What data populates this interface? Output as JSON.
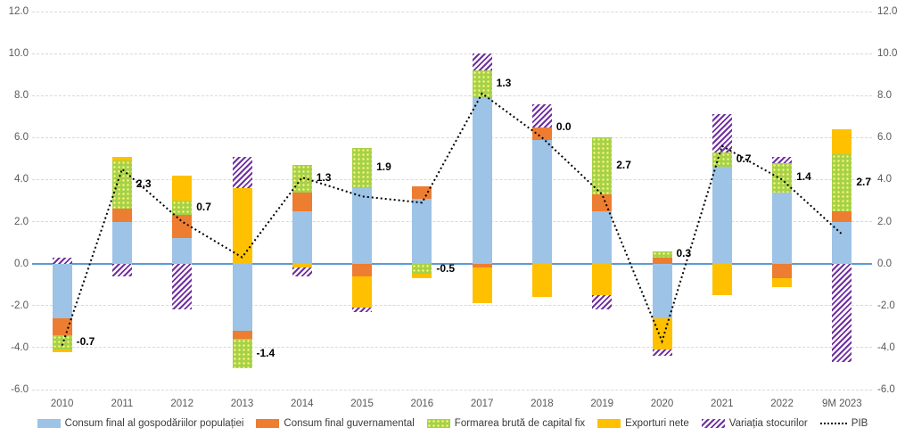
{
  "chart_data": {
    "type": "bar",
    "subtype": "stacked-bar-with-line",
    "title": "",
    "categories": [
      "2010",
      "2011",
      "2012",
      "2013",
      "2014",
      "2015",
      "2016",
      "2017",
      "2018",
      "2019",
      "2020",
      "2021",
      "2022",
      "9M 2023"
    ],
    "series": [
      {
        "name": "Consum final al gospodăriilor populației",
        "color": "#9DC3E6",
        "pattern": "solid",
        "values": [
          -2.6,
          2.0,
          1.2,
          -3.2,
          2.5,
          3.6,
          3.1,
          7.9,
          5.9,
          2.5,
          -2.6,
          4.6,
          3.4,
          2.0
        ]
      },
      {
        "name": "Consum final guvernamental",
        "color": "#ED7D31",
        "pattern": "solid",
        "values": [
          -0.8,
          0.6,
          1.1,
          -0.4,
          0.9,
          -0.6,
          0.6,
          -0.2,
          0.6,
          0.8,
          0.3,
          0.0,
          -0.7,
          0.5
        ]
      },
      {
        "name": "Formarea brută de capital fix",
        "color": "#A5D14B",
        "pattern": "dots",
        "values": [
          -0.7,
          2.3,
          0.7,
          -1.4,
          1.3,
          1.9,
          -0.5,
          1.3,
          0.0,
          2.7,
          0.3,
          0.7,
          1.4,
          2.7
        ]
      },
      {
        "name": "Exporturi nete",
        "color": "#FFC000",
        "pattern": "solid",
        "values": [
          -0.1,
          0.2,
          1.2,
          3.6,
          -0.2,
          -1.5,
          -0.2,
          -1.7,
          -1.6,
          -1.5,
          -1.5,
          -1.5,
          -0.4,
          1.2
        ]
      },
      {
        "name": "Variația stocurilor",
        "color": "#7030A0",
        "pattern": "hatch",
        "values": [
          0.3,
          -0.6,
          -2.2,
          1.5,
          -0.4,
          -0.2,
          0.0,
          0.8,
          1.1,
          -0.7,
          -0.3,
          1.8,
          0.3,
          -4.7
        ]
      }
    ],
    "line_series": {
      "name": "PIB",
      "color": "#000000",
      "style": "dotted",
      "values": [
        -3.9,
        4.5,
        2.0,
        0.3,
        4.1,
        3.2,
        2.9,
        8.1,
        6.0,
        3.3,
        -3.7,
        5.6,
        4.0,
        1.4
      ]
    },
    "data_labels": {
      "series": "Formarea brută de capital fix",
      "values": [
        "-0.7",
        "2.3",
        "0.7",
        "-1.4",
        "1.3",
        "1.9",
        "-0.5",
        "1.3",
        "0.0",
        "2.7",
        "0.3",
        "0.7",
        "1.4",
        "2.7"
      ]
    },
    "y_axis": {
      "min": -6,
      "max": 12,
      "step": 2,
      "ticks": [
        "12.0",
        "10.0",
        "8.0",
        "6.0",
        "4.0",
        "2.0",
        "0.0",
        "-2.0",
        "-4.0",
        "-6.0"
      ],
      "sides": [
        "left",
        "right"
      ]
    },
    "grid": true,
    "legend_position": "bottom",
    "colors": {
      "zero_line": "#5B9BD5",
      "grid": "#D9D9D9",
      "axis_text": "#595959",
      "data_label_text": "#000000",
      "green_dot": "#FFF66E",
      "hatch_background": "#FFFFFF"
    }
  }
}
